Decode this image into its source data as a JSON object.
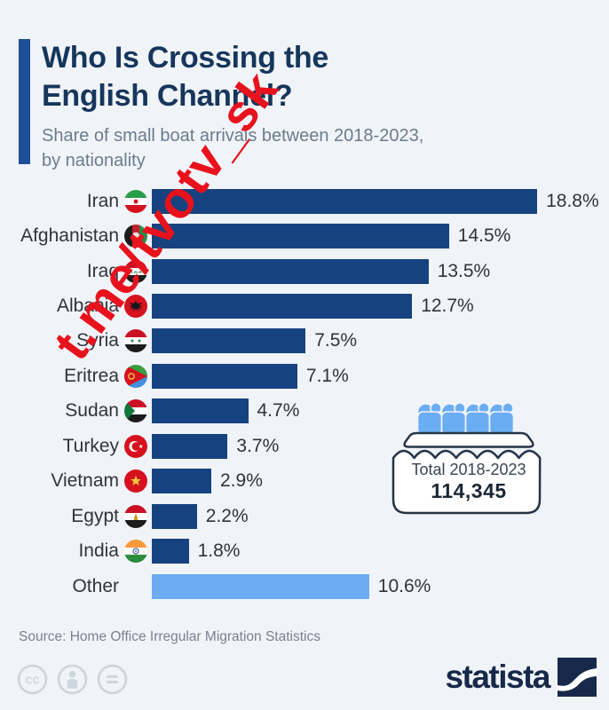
{
  "page": {
    "background": "#f0f4f8"
  },
  "header": {
    "accent_color": "#1e4e96",
    "title_lines": [
      "Who Is Crossing the",
      "English Channel?"
    ],
    "subtitle_lines": [
      "Share of small boat arrivals between 2018-2023,",
      "by nationality"
    ]
  },
  "watermark": {
    "text": "t.me/tvotv_sk",
    "color": "#e8121d"
  },
  "chart_data": {
    "type": "bar",
    "orientation": "horizontal",
    "title": "Who Is Crossing the English Channel?",
    "subtitle": "Share of small boat arrivals between 2018-2023, by nationality",
    "unit": "%",
    "xlim": [
      0,
      20
    ],
    "grid": false,
    "legend": null,
    "categories": [
      "Iran",
      "Afghanistan",
      "Iraq",
      "Albania",
      "Syria",
      "Eritrea",
      "Sudan",
      "Turkey",
      "Vietnam",
      "Egypt",
      "India",
      "Other"
    ],
    "values": [
      18.8,
      14.5,
      13.5,
      12.7,
      7.5,
      7.1,
      4.7,
      3.7,
      2.9,
      2.2,
      1.8,
      10.6
    ],
    "value_labels": [
      "18.8%",
      "14.5%",
      "13.5%",
      "12.7%",
      "7.5%",
      "7.1%",
      "4.7%",
      "3.7%",
      "2.9%",
      "2.2%",
      "1.8%",
      "10.6%"
    ],
    "flags": [
      "iran",
      "afghanistan",
      "iraq",
      "albania",
      "syria",
      "eritrea",
      "sudan",
      "turkey",
      "vietnam",
      "egypt",
      "india",
      null
    ],
    "bar_color_default": "#164280",
    "bar_color_highlight": "#6babf0",
    "highlighted_category": "Other"
  },
  "total_box": {
    "label": "Total 2018-2023",
    "value": "114,345"
  },
  "source": {
    "text": "Source: Home Office Irregular Migration Statistics"
  },
  "footer": {
    "brand_text": "statista",
    "license_icons": [
      "cc",
      "attribution",
      "no-derivatives"
    ]
  }
}
